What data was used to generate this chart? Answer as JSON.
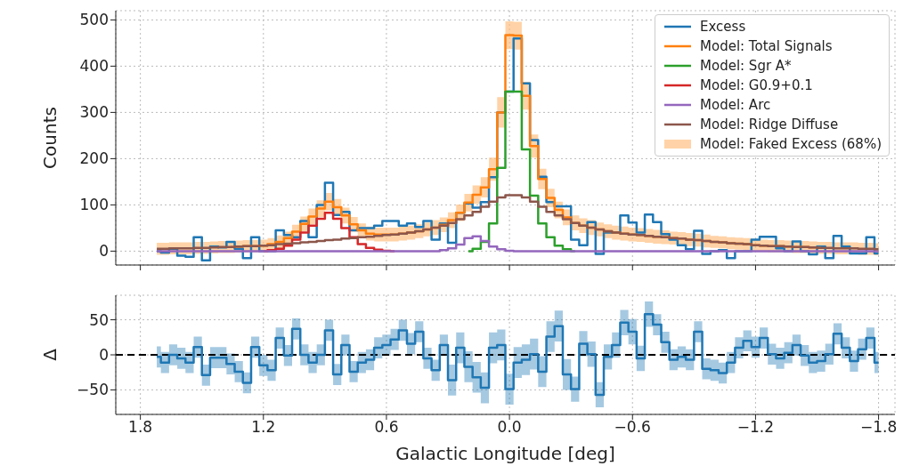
{
  "chart_data": [
    {
      "type": "step",
      "ylabel": "Counts",
      "x": [
        1.72,
        1.68,
        1.64,
        1.6,
        1.56,
        1.52,
        1.48,
        1.44,
        1.4,
        1.36,
        1.32,
        1.28,
        1.24,
        1.2,
        1.16,
        1.12,
        1.08,
        1.04,
        1.0,
        0.96,
        0.92,
        0.88,
        0.84,
        0.8,
        0.76,
        0.72,
        0.68,
        0.64,
        0.6,
        0.56,
        0.52,
        0.48,
        0.44,
        0.4,
        0.36,
        0.32,
        0.28,
        0.24,
        0.2,
        0.16,
        0.12,
        0.08,
        0.04,
        0.0,
        -0.04,
        -0.08,
        -0.12,
        -0.16,
        -0.2,
        -0.24,
        -0.28,
        -0.32,
        -0.36,
        -0.4,
        -0.44,
        -0.48,
        -0.52,
        -0.56,
        -0.6,
        -0.64,
        -0.68,
        -0.72,
        -0.76,
        -0.8,
        -0.84,
        -0.88,
        -0.92,
        -0.96,
        -1.0,
        -1.04,
        -1.08,
        -1.12,
        -1.16,
        -1.2,
        -1.24,
        -1.28,
        -1.32,
        -1.36,
        -1.4,
        -1.44,
        -1.48,
        -1.52,
        -1.56,
        -1.6,
        -1.64,
        -1.68,
        -1.72,
        -1.76,
        -1.8
      ],
      "series": [
        {
          "name": "Excess",
          "color": "#1f77b4",
          "values": [
            0,
            -3,
            5,
            -10,
            -12,
            30,
            -20,
            10,
            8,
            20,
            5,
            -15,
            30,
            0,
            0,
            45,
            35,
            30,
            65,
            30,
            100,
            148,
            78,
            85,
            45,
            50,
            50,
            55,
            65,
            65,
            55,
            60,
            52,
            65,
            25,
            60,
            18,
            83,
            103,
            94,
            106,
            160,
            300,
            345,
            460,
            363,
            240,
            161,
            106,
            97,
            97,
            25,
            13,
            63,
            -6,
            40,
            40,
            77,
            62,
            40,
            79,
            63,
            37,
            25,
            13,
            4,
            44,
            -6,
            0,
            2,
            -15,
            0,
            0,
            25,
            31,
            31,
            6,
            0,
            21,
            0,
            -7,
            10,
            -15,
            33,
            10,
            -5,
            -5,
            30,
            -5
          ]
        },
        {
          "name": "Model: Total Signals",
          "color": "#ff7f0e",
          "values": [
            null,
            null,
            null,
            null,
            null,
            null,
            null,
            null,
            null,
            9,
            10,
            11,
            11,
            12,
            15,
            20,
            28,
            42,
            59,
            75,
            92,
            107,
            95,
            77,
            58,
            45,
            38,
            36,
            36,
            36,
            38,
            40,
            43,
            47,
            51,
            57,
            67,
            83,
            105,
            122,
            138,
            177,
            300,
            467,
            466,
            336,
            227,
            156,
            115,
            89,
            73,
            61,
            55,
            51,
            47,
            43,
            40,
            38,
            36,
            35,
            33,
            31,
            30,
            28,
            27,
            25,
            24,
            22,
            20,
            19,
            17,
            16,
            15,
            13,
            12,
            11,
            11,
            10,
            9,
            9,
            8,
            7,
            null,
            null,
            null,
            null,
            null,
            null,
            null
          ]
        },
        {
          "name": "Model: Sgr A*",
          "color": "#2ca02c",
          "values": [
            null,
            null,
            null,
            null,
            null,
            null,
            null,
            null,
            null,
            null,
            null,
            null,
            null,
            null,
            null,
            null,
            null,
            null,
            null,
            null,
            null,
            null,
            null,
            null,
            null,
            null,
            null,
            null,
            null,
            null,
            null,
            null,
            null,
            null,
            null,
            null,
            null,
            null,
            0,
            5,
            20,
            60,
            180,
            345,
            345,
            220,
            120,
            60,
            30,
            12,
            4,
            0,
            null,
            null,
            null,
            null,
            null,
            null,
            null,
            null,
            null,
            null,
            null,
            null,
            null,
            null,
            null,
            null,
            null,
            null,
            null,
            null,
            null,
            null,
            null,
            null,
            null,
            null,
            null,
            null,
            null,
            null,
            null,
            null,
            null,
            null,
            null,
            null,
            null
          ]
        },
        {
          "name": "Model: G0.9+0.1",
          "color": "#d62728",
          "values": [
            null,
            null,
            null,
            null,
            null,
            null,
            null,
            null,
            null,
            null,
            null,
            null,
            null,
            0,
            2,
            5,
            12,
            25,
            40,
            55,
            70,
            83,
            70,
            50,
            30,
            15,
            7,
            3,
            1,
            0,
            null,
            null,
            null,
            null,
            null,
            null,
            null,
            null,
            null,
            null,
            null,
            null,
            null,
            null,
            null,
            null,
            null,
            null,
            null,
            null,
            null,
            null,
            null,
            null,
            null,
            null,
            null,
            null,
            null,
            null,
            null,
            null,
            null,
            null,
            null,
            null,
            null,
            null,
            null,
            null,
            null,
            null,
            null,
            null,
            null,
            null,
            null,
            null,
            null,
            null,
            null,
            null,
            null,
            null,
            null,
            null,
            null,
            null,
            null
          ]
        },
        {
          "name": "Model: Arc",
          "color": "#9467bd",
          "values": [
            0,
            0,
            0,
            0,
            0,
            0,
            0,
            0,
            0,
            0,
            0,
            0,
            0,
            0,
            0,
            0,
            0,
            0,
            0,
            0,
            0,
            0,
            0,
            0,
            0,
            0,
            0,
            0,
            0,
            0,
            0,
            0,
            0,
            0,
            0,
            2,
            6,
            14,
            28,
            32,
            22,
            10,
            4,
            1,
            0,
            0,
            0,
            0,
            0,
            0,
            0,
            0,
            0,
            0,
            0,
            0,
            0,
            0,
            0,
            0,
            0,
            0,
            0,
            0,
            0,
            0,
            0,
            0,
            0,
            0,
            0,
            0,
            0,
            0,
            0,
            0,
            0,
            0,
            0,
            0,
            0,
            0,
            0,
            0,
            0,
            0,
            0,
            0,
            0
          ]
        },
        {
          "name": "Model: Ridge Diffuse",
          "color": "#8c564b",
          "values": [
            5,
            5,
            6,
            6,
            6,
            7,
            7,
            8,
            9,
            9,
            10,
            11,
            11,
            12,
            13,
            15,
            16,
            17,
            19,
            20,
            22,
            24,
            25,
            27,
            28,
            30,
            31,
            33,
            35,
            36,
            38,
            40,
            43,
            47,
            51,
            55,
            61,
            69,
            77,
            85,
            96,
            107,
            116,
            121,
            121,
            116,
            107,
            96,
            85,
            77,
            69,
            61,
            55,
            51,
            47,
            43,
            40,
            38,
            36,
            35,
            33,
            31,
            30,
            28,
            27,
            25,
            24,
            22,
            20,
            19,
            17,
            16,
            15,
            13,
            12,
            11,
            11,
            10,
            9,
            9,
            8,
            7,
            7,
            6,
            6,
            6,
            5,
            5,
            4
          ]
        },
        {
          "name": "Model: Faked Excess (68%)",
          "type": "area",
          "color": "#ffbb78",
          "values": [
            null,
            null,
            null,
            null,
            null,
            null,
            null,
            null,
            null,
            null,
            null,
            null,
            null,
            null,
            null,
            null,
            null,
            null,
            null,
            null,
            null,
            null,
            null,
            null,
            null,
            null,
            null,
            null,
            null,
            null,
            null,
            null,
            null,
            null,
            null,
            null,
            null,
            null,
            null,
            null,
            null,
            null,
            null,
            null,
            null,
            null,
            null,
            null,
            null,
            null,
            null,
            null,
            null,
            null,
            null,
            null,
            null,
            null,
            null,
            null,
            null,
            null,
            null,
            null,
            null,
            null,
            null,
            null,
            null,
            null,
            null,
            null,
            null,
            null,
            null,
            null,
            null,
            null,
            null,
            null,
            null,
            null,
            null,
            null,
            null,
            null,
            null,
            null,
            null
          ],
          "lower": [
            -8,
            -8,
            -7,
            -7,
            -7,
            -6,
            -6,
            -5,
            -4,
            -4,
            -3,
            -2,
            -2,
            -1,
            2,
            6,
            14,
            27,
            43,
            58,
            74,
            88,
            77,
            60,
            42,
            30,
            23,
            21,
            21,
            21,
            23,
            25,
            28,
            32,
            35,
            41,
            50,
            65,
            86,
            102,
            116,
            152,
            267,
            437,
            436,
            306,
            202,
            134,
            95,
            71,
            56,
            45,
            39,
            35,
            32,
            28,
            25,
            23,
            21,
            20,
            18,
            16,
            15,
            14,
            13,
            11,
            10,
            8,
            7,
            6,
            4,
            3,
            2,
            0,
            -1,
            -2,
            -2,
            -3,
            -4,
            -4,
            -5,
            -6,
            -6,
            -7,
            -7,
            -7,
            -8,
            -8,
            -9
          ],
          "upper": [
            18,
            18,
            19,
            19,
            19,
            20,
            20,
            21,
            22,
            22,
            23,
            24,
            24,
            25,
            28,
            34,
            42,
            57,
            75,
            92,
            110,
            126,
            113,
            94,
            74,
            60,
            53,
            51,
            51,
            51,
            53,
            55,
            58,
            62,
            67,
            73,
            84,
            101,
            124,
            142,
            160,
            202,
            333,
            497,
            496,
            366,
            252,
            178,
            135,
            107,
            90,
            77,
            71,
            67,
            62,
            58,
            55,
            53,
            51,
            50,
            48,
            46,
            45,
            42,
            41,
            39,
            38,
            36,
            33,
            32,
            30,
            29,
            28,
            26,
            25,
            24,
            24,
            23,
            22,
            22,
            21,
            20,
            20,
            19,
            19,
            19,
            18,
            18,
            17
          ]
        }
      ],
      "xlim": [
        1.92,
        -1.88
      ],
      "xticks": [
        1.8,
        1.2,
        0.6,
        0,
        -0.6,
        -1.2,
        -1.8
      ],
      "ylim": [
        -30,
        520
      ],
      "yticks": [
        0,
        100,
        200,
        300,
        400,
        500
      ],
      "grid": true,
      "legend": "top right",
      "tick_labels": "y"
    },
    {
      "type": "step",
      "xlabel": "Galactic Longitude [deg]",
      "ylabel": "Δ",
      "x": [
        1.72,
        1.68,
        1.64,
        1.6,
        1.56,
        1.52,
        1.48,
        1.44,
        1.4,
        1.36,
        1.32,
        1.28,
        1.24,
        1.2,
        1.16,
        1.12,
        1.08,
        1.04,
        1.0,
        0.96,
        0.92,
        0.88,
        0.84,
        0.8,
        0.76,
        0.72,
        0.68,
        0.64,
        0.6,
        0.56,
        0.52,
        0.48,
        0.44,
        0.4,
        0.36,
        0.32,
        0.28,
        0.24,
        0.2,
        0.16,
        0.12,
        0.08,
        0.04,
        0.0,
        -0.04,
        -0.08,
        -0.12,
        -0.16,
        -0.2,
        -0.24,
        -0.28,
        -0.32,
        -0.36,
        -0.4,
        -0.44,
        -0.48,
        -0.52,
        -0.56,
        -0.6,
        -0.64,
        -0.68,
        -0.72,
        -0.76,
        -0.8,
        -0.84,
        -0.88,
        -0.92,
        -0.96,
        -1.0,
        -1.04,
        -1.08,
        -1.12,
        -1.16,
        -1.2,
        -1.24,
        -1.28,
        -1.32,
        -1.36,
        -1.4,
        -1.44,
        -1.48,
        -1.52,
        -1.56,
        -1.6,
        -1.64,
        -1.68,
        -1.72,
        -1.76,
        -1.8
      ],
      "series": [
        {
          "color": "#1f77b4",
          "values": [
            -3,
            -11,
            0,
            -5,
            -11,
            11,
            -29,
            -4,
            -4,
            -13,
            -24,
            -40,
            11,
            -15,
            -22,
            24,
            -1,
            37,
            0,
            -11,
            0,
            35,
            -28,
            14,
            -24,
            -11,
            -7,
            10,
            14,
            22,
            35,
            16,
            33,
            -5,
            -22,
            14,
            -36,
            10,
            -17,
            -32,
            -47,
            10,
            14,
            -49,
            -11,
            -7,
            1,
            -24,
            26,
            41,
            -28,
            -49,
            16,
            1,
            -57,
            -3,
            14,
            46,
            33,
            -5,
            58,
            43,
            18,
            -7,
            -3,
            -7,
            33,
            -20,
            -22,
            -26,
            -11,
            10,
            20,
            11,
            24,
            1,
            -5,
            3,
            14,
            -1,
            -11,
            -9,
            1,
            30,
            10,
            -9,
            8,
            24,
            -11
          ],
          "lower": [
            -18,
            -26,
            -15,
            -20,
            -26,
            -4,
            -44,
            -19,
            -19,
            -28,
            -39,
            -55,
            -4,
            -30,
            -37,
            9,
            -16,
            22,
            -15,
            -26,
            -15,
            20,
            -43,
            -1,
            -39,
            -26,
            -22,
            -5,
            -1,
            7,
            20,
            1,
            18,
            -20,
            -37,
            -1,
            -58,
            -12,
            -39,
            -54,
            -69,
            -12,
            -8,
            -71,
            -33,
            -29,
            -21,
            -46,
            4,
            19,
            -50,
            -67,
            -2,
            -17,
            -75,
            -21,
            -4,
            28,
            15,
            -23,
            40,
            28,
            3,
            -22,
            -18,
            -22,
            18,
            -35,
            -37,
            -41,
            -26,
            -5,
            5,
            -4,
            9,
            -14,
            -20,
            -12,
            -1,
            -16,
            -26,
            -24,
            -14,
            15,
            -5,
            -24,
            -7,
            9,
            -26
          ],
          "upper": [
            12,
            4,
            15,
            10,
            4,
            26,
            -14,
            11,
            11,
            2,
            -9,
            -25,
            26,
            0,
            -7,
            39,
            14,
            52,
            15,
            4,
            15,
            50,
            -13,
            29,
            -9,
            4,
            8,
            25,
            29,
            37,
            50,
            31,
            48,
            10,
            -7,
            29,
            -14,
            32,
            5,
            -10,
            -25,
            32,
            36,
            -27,
            11,
            15,
            23,
            -2,
            48,
            63,
            -6,
            -31,
            34,
            19,
            -39,
            15,
            32,
            64,
            51,
            13,
            76,
            58,
            33,
            8,
            12,
            8,
            48,
            -5,
            -7,
            -11,
            4,
            25,
            35,
            26,
            39,
            16,
            10,
            18,
            29,
            14,
            4,
            6,
            16,
            45,
            25,
            6,
            23,
            39,
            4
          ]
        }
      ],
      "xlim": [
        1.92,
        -1.88
      ],
      "xticks": [
        {
          "value": 1.8,
          "label": "1.8"
        },
        {
          "value": 1.2,
          "label": "1.2"
        },
        {
          "value": 0.6,
          "label": "0.6"
        },
        {
          "value": 0,
          "label": "0.0"
        },
        {
          "value": -0.6,
          "label": "−0.6"
        },
        {
          "value": -1.2,
          "label": "−1.2"
        },
        {
          "value": -1.8,
          "label": "−1.8"
        }
      ],
      "ylim": [
        -85,
        85
      ],
      "yticks": [
        {
          "value": -50,
          "label": "−50"
        },
        0,
        50
      ],
      "grid": true,
      "ref_lines": [
        {
          "axis": "y",
          "value": 0,
          "color": "#000000",
          "line_style": "dashed"
        }
      ]
    }
  ]
}
